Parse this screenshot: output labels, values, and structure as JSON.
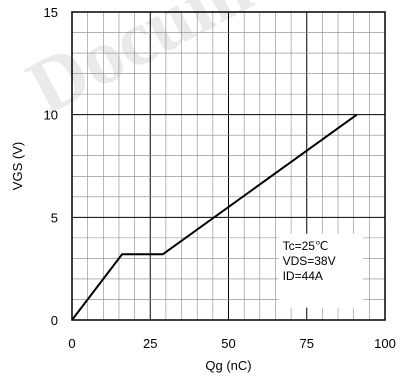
{
  "chart_data": {
    "type": "line",
    "title": "",
    "xlabel": "Qg (nC)",
    "ylabel": "VGS (V)",
    "xlim": [
      0,
      100
    ],
    "ylim": [
      0,
      15
    ],
    "x_ticks": [
      "0",
      "25",
      "50",
      "75",
      "100"
    ],
    "y_ticks": [
      "0",
      "5",
      "10",
      "15"
    ],
    "grid": "on",
    "series": [
      {
        "x": [
          0,
          16,
          29,
          91
        ],
        "y": [
          0,
          3.2,
          3.2,
          10
        ]
      }
    ],
    "annotation": [
      "Tc=25℃",
      "VDS=38V",
      "ID=44A"
    ],
    "line_color": "#000000"
  },
  "watermark": "Document"
}
